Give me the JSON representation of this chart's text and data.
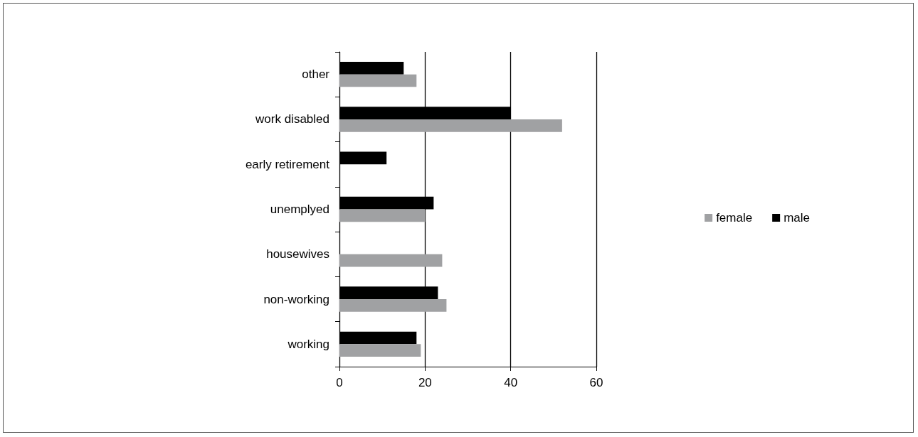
{
  "chart_data": {
    "type": "bar",
    "orientation": "horizontal",
    "categories": [
      "other",
      "work disabled",
      "early retirement",
      "unemplyed",
      "housewives",
      "non-working",
      "working"
    ],
    "series": [
      {
        "name": "female",
        "color": "#a0a1a3",
        "values": [
          18,
          52,
          null,
          20,
          24,
          25,
          19
        ]
      },
      {
        "name": "male",
        "color": "#000000",
        "values": [
          15,
          40,
          11,
          22,
          null,
          23,
          18
        ]
      }
    ],
    "xlim": [
      0,
      60
    ],
    "xticks": [
      0,
      20,
      40,
      60
    ],
    "grid": "x",
    "legend": "right"
  }
}
